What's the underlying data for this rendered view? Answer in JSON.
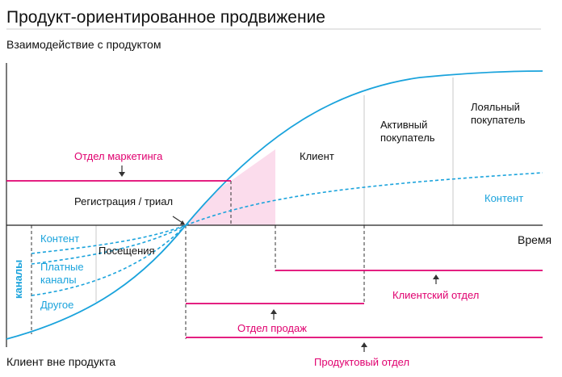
{
  "title": "Продукт-ориентированное продвижение",
  "axes": {
    "y_label": "Взаимодействие с продуктом",
    "x_label": "Время",
    "bottom_label": "Клиент вне продукта"
  },
  "stages": {
    "registration": "Регистрация / триал",
    "client": "Клиент",
    "active": [
      "Активный",
      "покупатель"
    ],
    "loyal": [
      "Лояльный",
      "покупатель"
    ],
    "visits": "Посещения",
    "content_top": "Контент"
  },
  "channels": {
    "group": "каналы",
    "content": "Контент",
    "paid": [
      "Платные",
      "каналы"
    ],
    "other": "Другое"
  },
  "departments": {
    "marketing": "Отдел маркетинга",
    "sales": "Отдел продаж",
    "customer": "Клиентский отдел",
    "product": "Продуктовый отдел"
  },
  "colors": {
    "title": "#111111",
    "text": "#111111",
    "axis": "#222222",
    "curve": "#1aa3dc",
    "magenta": "#e0006f",
    "shade": "#fbdcec",
    "grid": "#c8c8c8",
    "dash": "#333333"
  }
}
